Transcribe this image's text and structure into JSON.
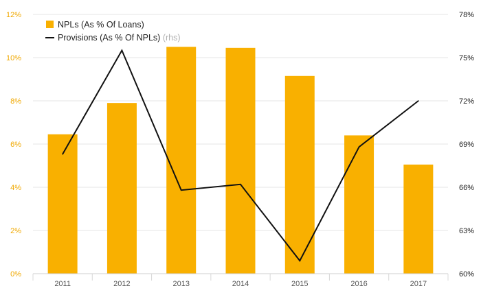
{
  "chart_data": {
    "type": "bar",
    "categories": [
      "2011",
      "2012",
      "2013",
      "2014",
      "2015",
      "2016",
      "2017"
    ],
    "series": [
      {
        "name": "NPLs (As % Of Loans)",
        "type": "bar",
        "axis": "left",
        "values": [
          6.45,
          7.9,
          10.5,
          10.45,
          9.15,
          6.4,
          5.05
        ]
      },
      {
        "name": "Provisions (As % Of NPLs)",
        "name_suffix": "(rhs)",
        "type": "line",
        "axis": "right",
        "values": [
          68.3,
          75.5,
          65.8,
          66.2,
          60.9,
          68.8,
          72.0
        ]
      }
    ],
    "y_left": {
      "range": [
        0,
        12
      ],
      "ticks": [
        "0%",
        "2%",
        "4%",
        "6%",
        "8%",
        "10%",
        "12%"
      ]
    },
    "y_right": {
      "range": [
        60,
        78
      ],
      "ticks": [
        "60%",
        "63%",
        "66%",
        "69%",
        "72%",
        "75%",
        "78%"
      ]
    },
    "grid": true,
    "legend_position": "top-left",
    "colors": {
      "bar": "#f9b000",
      "line": "#111111",
      "grid": "#e6e6e6",
      "left_axis_text": "#f0a800"
    }
  }
}
